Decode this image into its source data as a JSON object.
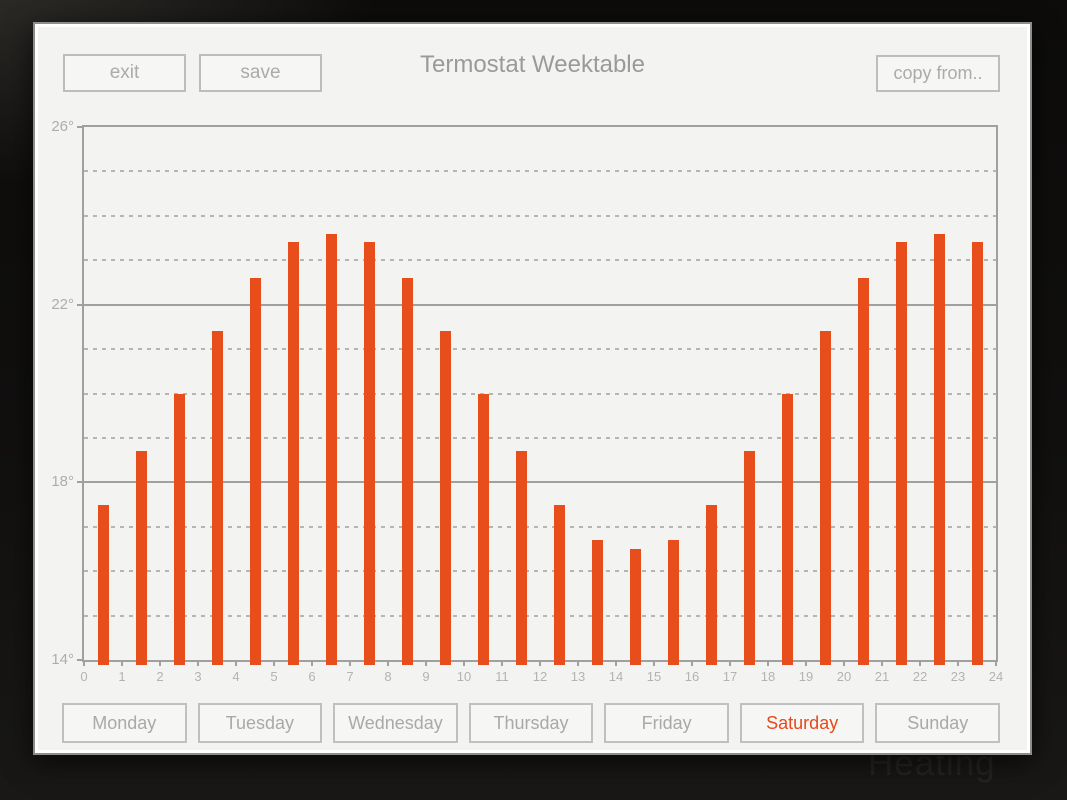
{
  "window": {
    "background_label": "Heating"
  },
  "header": {
    "title": "Termostat Weektable",
    "exit_label": "exit",
    "save_label": "save",
    "copy_from_label": "copy from.."
  },
  "days": {
    "labels": [
      "Monday",
      "Tuesday",
      "Wednesday",
      "Thursday",
      "Friday",
      "Saturday",
      "Sunday"
    ],
    "selected": "Saturday"
  },
  "chart_data": {
    "type": "bar",
    "title": "Termostat Weektable",
    "x": [
      0,
      1,
      2,
      3,
      4,
      5,
      6,
      7,
      8,
      9,
      10,
      11,
      12,
      13,
      14,
      15,
      16,
      17,
      18,
      19,
      20,
      21,
      22,
      23
    ],
    "values": [
      17.5,
      18.7,
      20.0,
      21.4,
      22.6,
      23.4,
      23.6,
      23.4,
      22.6,
      21.4,
      20.0,
      18.7,
      17.5,
      16.7,
      16.5,
      16.7,
      17.5,
      18.7,
      20.0,
      21.4,
      22.6,
      23.4,
      23.6,
      23.4
    ],
    "value_unit": "°",
    "xlim": [
      0,
      24
    ],
    "ylim": [
      14,
      26
    ],
    "x_tick_labels": [
      0,
      1,
      2,
      3,
      4,
      5,
      6,
      7,
      8,
      9,
      10,
      11,
      12,
      13,
      14,
      15,
      16,
      17,
      18,
      19,
      20,
      21,
      22,
      23,
      24
    ],
    "y_ticks": [
      {
        "y": 26,
        "label": "26°"
      },
      {
        "y": 22,
        "label": "22°"
      },
      {
        "y": 18,
        "label": "18°"
      },
      {
        "y": 14,
        "label": "14°"
      }
    ],
    "gridlines": {
      "solid_at": [
        22,
        18
      ],
      "dashed_at": [
        25,
        24,
        23,
        21,
        20,
        19,
        17,
        16,
        15
      ]
    },
    "bar_color": "#e84e1b",
    "grid": true,
    "legend": false
  },
  "colors": {
    "accent_orange": "#e84e1b",
    "panel_background": "#f3f3f1",
    "button_background": "#f6f6f4",
    "button_border": "#bfbfbf",
    "muted_text": "#a9a9a9",
    "title_text": "#9a9a9a",
    "grid_solid": "#a0a0a0",
    "grid_dashed": "#b5b5b5",
    "tick_label_text": "#b3b3b3",
    "frame_background": "#121110"
  }
}
